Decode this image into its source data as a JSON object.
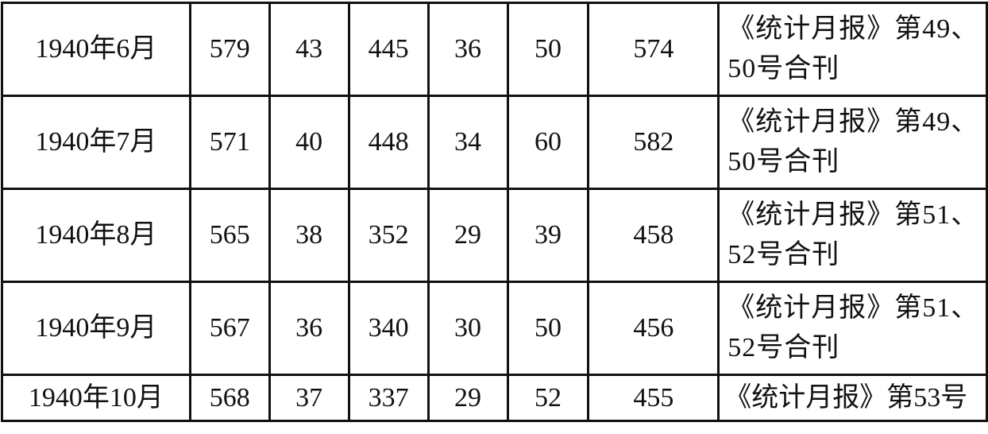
{
  "table": {
    "rows": [
      {
        "date": "1940年6月",
        "values": [
          "579",
          "43",
          "445",
          "36",
          "50",
          "574"
        ],
        "source": "《统计月报》第49、50号合刊"
      },
      {
        "date": "1940年7月",
        "values": [
          "571",
          "40",
          "448",
          "34",
          "60",
          "582"
        ],
        "source": "《统计月报》第49、50号合刊"
      },
      {
        "date": "1940年8月",
        "values": [
          "565",
          "38",
          "352",
          "29",
          "39",
          "458"
        ],
        "source": "《统计月报》第51、52号合刊"
      },
      {
        "date": "1940年9月",
        "values": [
          "567",
          "36",
          "340",
          "30",
          "50",
          "456"
        ],
        "source": "《统计月报》第51、52号合刊"
      },
      {
        "date": "1940年10月",
        "values": [
          "568",
          "37",
          "337",
          "29",
          "52",
          "455"
        ],
        "source": "《统计月报》第53号"
      }
    ]
  }
}
